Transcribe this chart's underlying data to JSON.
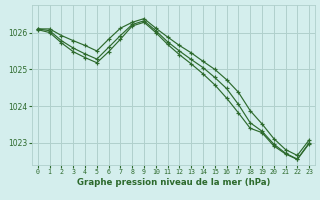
{
  "title": "Graphe pression niveau de la mer (hPa)",
  "bg_color": "#d4eeed",
  "grid_color": "#b0d0cc",
  "line_color": "#2d6a2d",
  "xlim": [
    -0.5,
    23.5
  ],
  "ylim": [
    1022.4,
    1026.75
  ],
  "yticks": [
    1023,
    1024,
    1025,
    1026
  ],
  "xticks": [
    0,
    1,
    2,
    3,
    4,
    5,
    6,
    7,
    8,
    9,
    10,
    11,
    12,
    13,
    14,
    15,
    16,
    17,
    18,
    19,
    20,
    21,
    22,
    23
  ],
  "series": [
    [
      1026.1,
      1026.1,
      1025.92,
      1025.78,
      1025.65,
      1025.5,
      1025.82,
      1026.12,
      1026.28,
      1026.38,
      1026.12,
      1025.88,
      1025.65,
      1025.45,
      1025.22,
      1025.0,
      1024.72,
      1024.38,
      1023.88,
      1023.52,
      1023.12,
      1022.82,
      1022.66,
      1023.08
    ],
    [
      1026.1,
      1026.05,
      1025.78,
      1025.58,
      1025.42,
      1025.28,
      1025.6,
      1025.92,
      1026.22,
      1026.32,
      1026.05,
      1025.75,
      1025.5,
      1025.27,
      1025.05,
      1024.78,
      1024.48,
      1024.05,
      1023.55,
      1023.32,
      1022.97,
      1022.72,
      1022.56,
      1023.0
    ],
    [
      1026.08,
      1026.0,
      1025.72,
      1025.48,
      1025.32,
      1025.18,
      1025.48,
      1025.82,
      1026.18,
      1026.28,
      1026.0,
      1025.68,
      1025.4,
      1025.15,
      1024.88,
      1024.58,
      1024.22,
      1023.82,
      1023.4,
      1023.28,
      1022.92,
      1022.7,
      1022.55,
      1022.98
    ]
  ]
}
